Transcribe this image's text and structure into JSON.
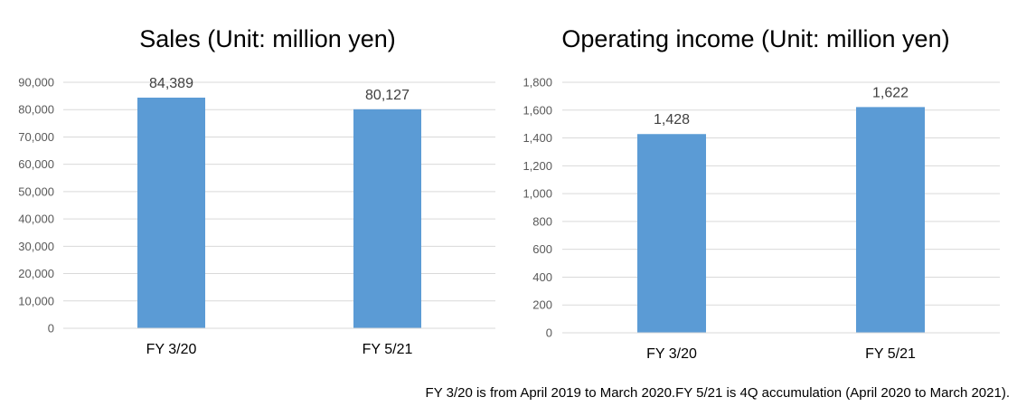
{
  "chart_data": [
    {
      "type": "bar",
      "title": "Sales (Unit: million yen)",
      "xlabel": "",
      "ylabel": "",
      "categories": [
        "FY 3/20",
        "FY 5/21"
      ],
      "values": [
        84389,
        80127
      ],
      "data_labels": [
        "84,389",
        "80,127"
      ],
      "ylim": [
        0,
        90000
      ],
      "yticks": [
        0,
        10000,
        20000,
        30000,
        40000,
        50000,
        60000,
        70000,
        80000,
        90000
      ],
      "ytick_labels": [
        "0",
        "10,000",
        "20,000",
        "30,000",
        "40,000",
        "50,000",
        "60,000",
        "70,000",
        "80,000",
        "90,000"
      ],
      "grid": true,
      "legend": "none",
      "bar_color": "#5b9bd5"
    },
    {
      "type": "bar",
      "title": "Operating income (Unit: million yen)",
      "xlabel": "",
      "ylabel": "",
      "categories": [
        "FY 3/20",
        "FY 5/21"
      ],
      "values": [
        1428,
        1622
      ],
      "data_labels": [
        "1,428",
        "1,622"
      ],
      "ylim": [
        0,
        1800
      ],
      "yticks": [
        0,
        200,
        400,
        600,
        800,
        1000,
        1200,
        1400,
        1600,
        1800
      ],
      "ytick_labels": [
        "0",
        "200",
        "400",
        "600",
        "800",
        "1,000",
        "1,200",
        "1,400",
        "1,600",
        "1,800"
      ],
      "grid": true,
      "legend": "none",
      "bar_color": "#5b9bd5"
    }
  ],
  "footnote": "FY 3/20 is from April 2019 to March 2020.FY 5/21 is 4Q accumulation (April 2020 to March 2021)."
}
